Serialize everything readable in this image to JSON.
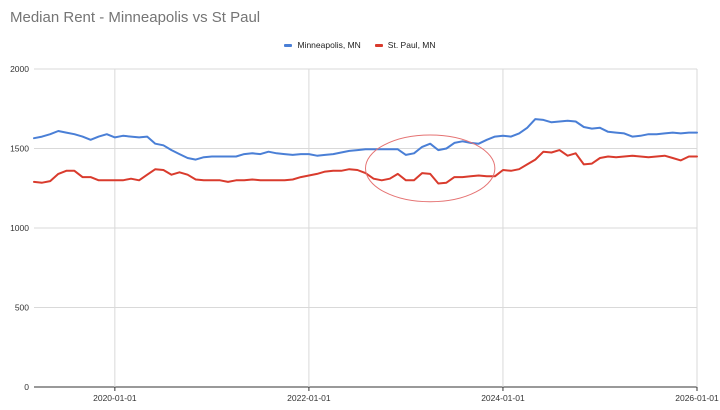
{
  "chart_data": {
    "type": "line",
    "title": "Median Rent - Minneapolis vs St Paul",
    "xlabel": "",
    "ylabel": "",
    "ylim": [
      0,
      2000
    ],
    "xlim": [
      "2019-03-01",
      "2026-01-01"
    ],
    "y_ticks": [
      0,
      500,
      1000,
      1500,
      2000
    ],
    "x_ticks": [
      "2020-01-01",
      "2022-01-01",
      "2024-01-01",
      "2026-01-01"
    ],
    "grid": true,
    "legend": "top",
    "x": [
      "2019-03",
      "2019-04",
      "2019-05",
      "2019-06",
      "2019-07",
      "2019-08",
      "2019-09",
      "2019-10",
      "2019-11",
      "2019-12",
      "2020-01",
      "2020-02",
      "2020-03",
      "2020-04",
      "2020-05",
      "2020-06",
      "2020-07",
      "2020-08",
      "2020-09",
      "2020-10",
      "2020-11",
      "2020-12",
      "2021-01",
      "2021-02",
      "2021-03",
      "2021-04",
      "2021-05",
      "2021-06",
      "2021-07",
      "2021-08",
      "2021-09",
      "2021-10",
      "2021-11",
      "2021-12",
      "2022-01",
      "2022-02",
      "2022-03",
      "2022-04",
      "2022-05",
      "2022-06",
      "2022-07",
      "2022-08",
      "2022-09",
      "2022-10",
      "2022-11",
      "2022-12",
      "2023-01",
      "2023-02",
      "2023-03",
      "2023-04",
      "2023-05",
      "2023-06",
      "2023-07",
      "2023-08",
      "2023-09",
      "2023-10",
      "2023-11",
      "2023-12",
      "2024-01",
      "2024-02",
      "2024-03",
      "2024-04",
      "2024-05",
      "2024-06",
      "2024-07",
      "2024-08",
      "2024-09",
      "2024-10",
      "2024-11",
      "2024-12",
      "2025-01",
      "2025-02",
      "2025-03",
      "2025-04",
      "2025-05",
      "2025-06",
      "2025-07",
      "2025-08",
      "2025-09",
      "2025-10",
      "2025-11",
      "2025-12",
      "2026-01"
    ],
    "series": [
      {
        "name": "Minneapolis, MN",
        "color": "#4a7fd6",
        "values": [
          1565,
          1575,
          1590,
          1610,
          1600,
          1590,
          1575,
          1555,
          1575,
          1590,
          1570,
          1580,
          1575,
          1570,
          1575,
          1530,
          1520,
          1490,
          1465,
          1440,
          1430,
          1445,
          1450,
          1450,
          1450,
          1450,
          1465,
          1470,
          1465,
          1480,
          1470,
          1465,
          1460,
          1465,
          1465,
          1455,
          1460,
          1465,
          1475,
          1485,
          1490,
          1495,
          1495,
          1495,
          1495,
          1495,
          1460,
          1470,
          1510,
          1530,
          1490,
          1500,
          1535,
          1545,
          1535,
          1530,
          1555,
          1575,
          1580,
          1575,
          1595,
          1630,
          1685,
          1680,
          1665,
          1670,
          1675,
          1670,
          1635,
          1625,
          1630,
          1605,
          1600,
          1595,
          1575,
          1580,
          1590,
          1590,
          1595,
          1600,
          1595,
          1600,
          1600
        ]
      },
      {
        "name": "St. Paul, MN",
        "color": "#d93b2d",
        "values": [
          1290,
          1285,
          1295,
          1340,
          1360,
          1360,
          1320,
          1320,
          1300,
          1300,
          1300,
          1300,
          1310,
          1300,
          1335,
          1370,
          1365,
          1335,
          1350,
          1335,
          1305,
          1300,
          1300,
          1300,
          1290,
          1300,
          1300,
          1305,
          1300,
          1300,
          1300,
          1300,
          1305,
          1320,
          1330,
          1340,
          1355,
          1360,
          1360,
          1370,
          1365,
          1345,
          1310,
          1300,
          1310,
          1340,
          1300,
          1300,
          1345,
          1340,
          1280,
          1285,
          1320,
          1320,
          1325,
          1330,
          1325,
          1325,
          1365,
          1360,
          1370,
          1400,
          1430,
          1480,
          1475,
          1490,
          1455,
          1470,
          1400,
          1405,
          1440,
          1450,
          1445,
          1450,
          1455,
          1450,
          1445,
          1450,
          1455,
          1440,
          1425,
          1450,
          1450
        ]
      }
    ],
    "annotations": [
      {
        "type": "ellipse",
        "color": "#e57373",
        "x_center": "2023-04",
        "y_center": 1375,
        "x_span_months": 16,
        "y_span": 420
      }
    ]
  }
}
